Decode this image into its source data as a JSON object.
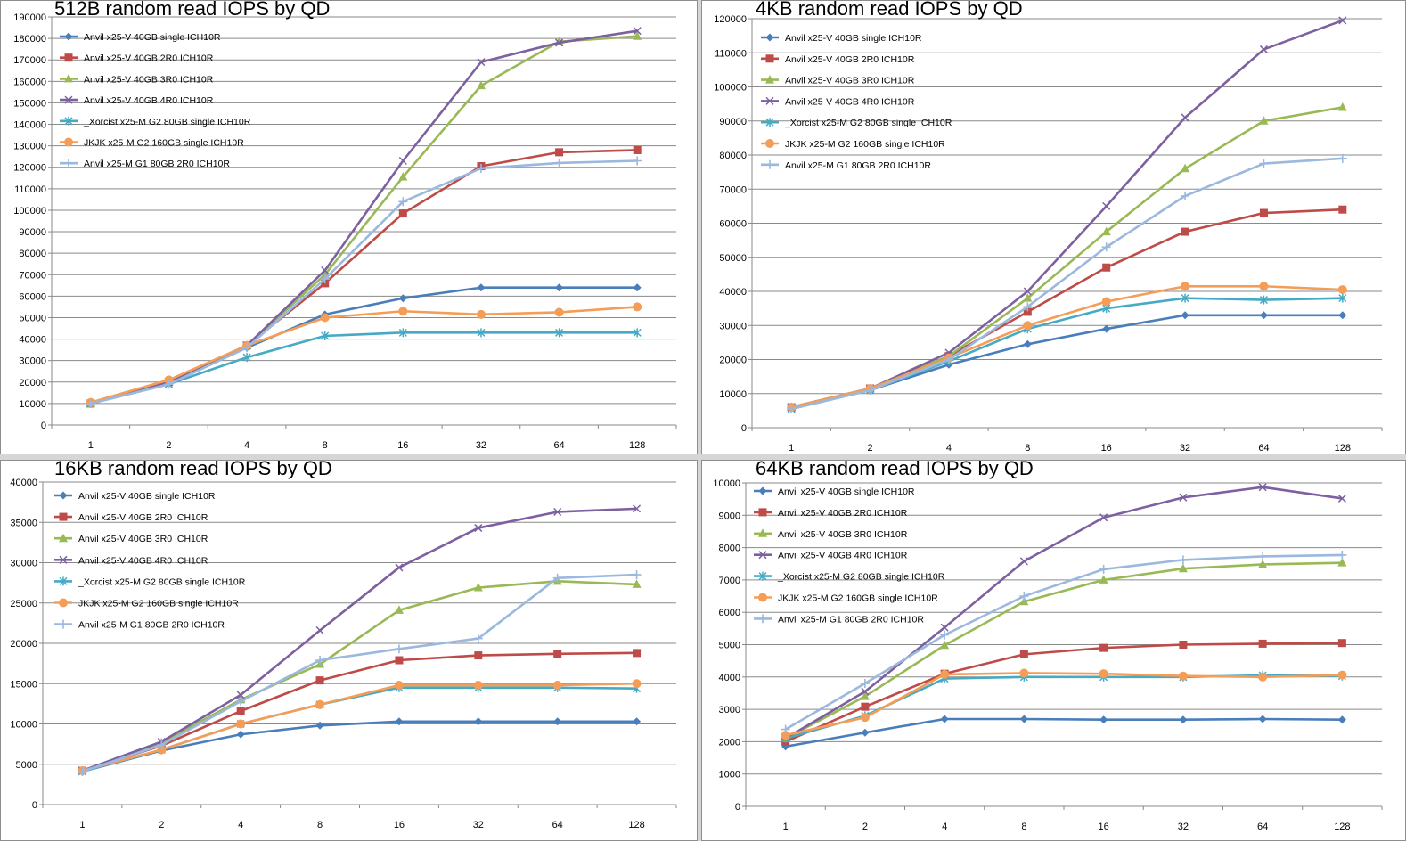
{
  "series_styles": [
    {
      "name": "Anvil x25-V 40GB single ICH10R",
      "color": "#4a7ebb",
      "marker": "diamond"
    },
    {
      "name": "Anvil x25-V 40GB 2R0 ICH10R",
      "color": "#be4b48",
      "marker": "square"
    },
    {
      "name": "Anvil x25-V 40GB 3R0 ICH10R",
      "color": "#98b954",
      "marker": "triangle"
    },
    {
      "name": "Anvil x25-V 40GB 4R0 ICH10R",
      "color": "#7d60a0",
      "marker": "x"
    },
    {
      "name": "_Xorcist x25-M G2 80GB single ICH10R",
      "color": "#46aac5",
      "marker": "star"
    },
    {
      "name": "JKJK x25-M G2 160GB single ICH10R",
      "color": "#f59d56",
      "marker": "circle"
    },
    {
      "name": "Anvil x25-M G1 80GB 2R0 ICH10R",
      "color": "#9bb8de",
      "marker": "plus"
    }
  ],
  "chart_data": [
    {
      "type": "line",
      "title": "512B random read IOPS by QD",
      "categories": [
        "1",
        "2",
        "4",
        "8",
        "16",
        "32",
        "64",
        "128"
      ],
      "ylim": [
        0,
        190000
      ],
      "ystep": 10000,
      "grid": true,
      "legend": "top-left",
      "series": [
        {
          "name": "Anvil x25-V 40GB single ICH10R",
          "values": [
            10000,
            19500,
            36000,
            51500,
            59000,
            64000,
            64000,
            64000
          ]
        },
        {
          "name": "Anvil x25-V 40GB 2R0 ICH10R",
          "values": [
            10000,
            20000,
            37000,
            66000,
            98500,
            120500,
            127000,
            128000
          ]
        },
        {
          "name": "Anvil x25-V 40GB 3R0 ICH10R",
          "values": [
            10000,
            20000,
            37000,
            70000,
            115500,
            158000,
            178500,
            181000
          ]
        },
        {
          "name": "Anvil x25-V 40GB 4R0 ICH10R",
          "values": [
            10000,
            20000,
            37000,
            72000,
            123000,
            169000,
            178000,
            183500
          ]
        },
        {
          "name": "_Xorcist x25-M G2 80GB single ICH10R",
          "values": [
            10000,
            19000,
            31500,
            41500,
            43000,
            43000,
            43000,
            43000
          ]
        },
        {
          "name": "JKJK x25-M G2 160GB single ICH10R",
          "values": [
            10500,
            21000,
            37000,
            50000,
            53000,
            51500,
            52500,
            55000
          ]
        },
        {
          "name": "Anvil x25-M G1 80GB 2R0 ICH10R",
          "values": [
            10000,
            19000,
            36000,
            68000,
            104000,
            119500,
            122000,
            123000
          ]
        }
      ]
    },
    {
      "type": "line",
      "title": "4KB random read IOPS by QD",
      "categories": [
        "1",
        "2",
        "4",
        "8",
        "16",
        "32",
        "64",
        "128"
      ],
      "ylim": [
        0,
        120000
      ],
      "ystep": 10000,
      "grid": true,
      "legend": "top-left",
      "series": [
        {
          "name": "Anvil x25-V 40GB single ICH10R",
          "values": [
            6000,
            11000,
            18500,
            24500,
            29000,
            33000,
            33000,
            33000
          ]
        },
        {
          "name": "Anvil x25-V 40GB 2R0 ICH10R",
          "values": [
            6000,
            11500,
            21000,
            34000,
            47000,
            57500,
            63000,
            64000
          ]
        },
        {
          "name": "Anvil x25-V 40GB 3R0 ICH10R",
          "values": [
            6000,
            11500,
            21000,
            38000,
            57500,
            76000,
            90000,
            94000
          ]
        },
        {
          "name": "Anvil x25-V 40GB 4R0 ICH10R",
          "values": [
            6000,
            11500,
            22000,
            40000,
            65000,
            91000,
            111000,
            119500
          ]
        },
        {
          "name": "_Xorcist x25-M G2 80GB single ICH10R",
          "values": [
            5500,
            11000,
            19500,
            29000,
            35000,
            38000,
            37500,
            38000
          ]
        },
        {
          "name": "JKJK x25-M G2 160GB single ICH10R",
          "values": [
            6000,
            11500,
            20500,
            30000,
            37000,
            41500,
            41500,
            40500
          ]
        },
        {
          "name": "Anvil x25-M G1 80GB 2R0 ICH10R",
          "values": [
            5500,
            11000,
            20000,
            35500,
            53000,
            68000,
            77500,
            79000
          ]
        }
      ]
    },
    {
      "type": "line",
      "title": "16KB random read IOPS by QD",
      "categories": [
        "1",
        "2",
        "4",
        "8",
        "16",
        "32",
        "64",
        "128"
      ],
      "ylim": [
        0,
        40000
      ],
      "ystep": 5000,
      "grid": true,
      "legend": "top-left",
      "series": [
        {
          "name": "Anvil x25-V 40GB single ICH10R",
          "values": [
            4100,
            6700,
            8700,
            9800,
            10300,
            10300,
            10300,
            10300
          ]
        },
        {
          "name": "Anvil x25-V 40GB 2R0 ICH10R",
          "values": [
            4200,
            7300,
            11600,
            15400,
            17900,
            18500,
            18700,
            18800
          ]
        },
        {
          "name": "Anvil x25-V 40GB 3R0 ICH10R",
          "values": [
            4200,
            7700,
            13000,
            17400,
            24100,
            26900,
            27700,
            27300
          ]
        },
        {
          "name": "Anvil x25-V 40GB 4R0 ICH10R",
          "values": [
            4200,
            7800,
            13600,
            21600,
            29400,
            34300,
            36300,
            36700
          ]
        },
        {
          "name": "_Xorcist x25-M G2 80GB single ICH10R",
          "values": [
            4100,
            6800,
            10000,
            12400,
            14500,
            14500,
            14500,
            14400
          ]
        },
        {
          "name": "JKJK x25-M G2 160GB single ICH10R",
          "values": [
            4200,
            6800,
            10000,
            12400,
            14800,
            14800,
            14800,
            15000
          ]
        },
        {
          "name": "Anvil x25-M G1 80GB 2R0 ICH10R",
          "values": [
            4100,
            7400,
            12800,
            17900,
            19300,
            20600,
            28100,
            28500
          ]
        }
      ]
    },
    {
      "type": "line",
      "title": "64KB random read IOPS by QD",
      "categories": [
        "1",
        "2",
        "4",
        "8",
        "16",
        "32",
        "64",
        "128"
      ],
      "ylim": [
        0,
        10000
      ],
      "ystep": 1000,
      "grid": true,
      "legend": "top-left",
      "series": [
        {
          "name": "Anvil x25-V 40GB single ICH10R",
          "values": [
            1850,
            2280,
            2700,
            2700,
            2680,
            2680,
            2700,
            2680
          ]
        },
        {
          "name": "Anvil x25-V 40GB 2R0 ICH10R",
          "values": [
            2000,
            3080,
            4100,
            4700,
            4900,
            5000,
            5030,
            5050
          ]
        },
        {
          "name": "Anvil x25-V 40GB 3R0 ICH10R",
          "values": [
            2100,
            3400,
            4980,
            6330,
            7000,
            7350,
            7480,
            7530
          ]
        },
        {
          "name": "Anvil x25-V 40GB 4R0 ICH10R",
          "values": [
            2100,
            3550,
            5530,
            7580,
            8930,
            9550,
            9870,
            9520
          ]
        },
        {
          "name": "_Xorcist x25-M G2 80GB single ICH10R",
          "values": [
            2100,
            2800,
            3950,
            4000,
            4000,
            4000,
            4050,
            4030
          ]
        },
        {
          "name": "JKJK x25-M G2 160GB single ICH10R",
          "values": [
            2200,
            2750,
            4080,
            4120,
            4100,
            4030,
            4000,
            4060
          ]
        },
        {
          "name": "Anvil x25-M G1 80GB 2R0 ICH10R",
          "values": [
            2380,
            3800,
            5300,
            6500,
            7330,
            7620,
            7730,
            7770
          ]
        }
      ]
    }
  ]
}
